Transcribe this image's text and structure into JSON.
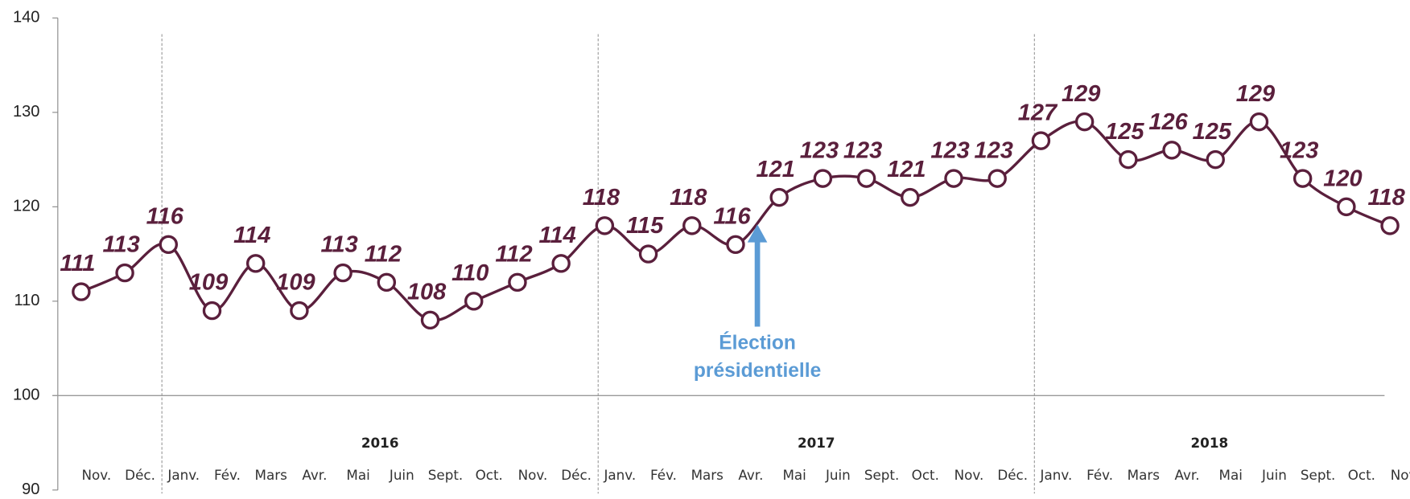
{
  "chart_data": {
    "type": "line",
    "groups": [
      {
        "label": null,
        "categories": [
          "Nov.",
          "Déc."
        ]
      },
      {
        "label": "2016",
        "categories": [
          "Janv.",
          "Fév.",
          "Mars",
          "Avr.",
          "Mai",
          "Juin",
          "Sept.",
          "Oct.",
          "Nov.",
          "Déc."
        ]
      },
      {
        "label": "2017",
        "categories": [
          "Janv.",
          "Fév.",
          "Mars",
          "Avr.",
          "Mai",
          "Juin",
          "Sept.",
          "Oct.",
          "Nov.",
          "Déc."
        ]
      },
      {
        "label": "2018",
        "categories": [
          "Janv.",
          "Fév.",
          "Mars",
          "Avr.",
          "Mai",
          "Juin",
          "Sept.",
          "Oct.",
          "Nov."
        ]
      }
    ],
    "values": [
      111,
      113,
      116,
      109,
      114,
      109,
      113,
      112,
      108,
      110,
      112,
      114,
      118,
      115,
      118,
      116,
      121,
      123,
      123,
      121,
      123,
      123,
      127,
      129,
      125,
      126,
      125,
      129,
      123,
      120,
      118
    ],
    "color": "#5a1f3c",
    "ylim": [
      90,
      140
    ],
    "yticks": [
      90,
      100,
      110,
      120,
      130,
      140
    ],
    "baseline": 100,
    "annotation": {
      "lines": [
        "Élection",
        "présidentielle"
      ],
      "color": "#5b9bd5"
    }
  }
}
